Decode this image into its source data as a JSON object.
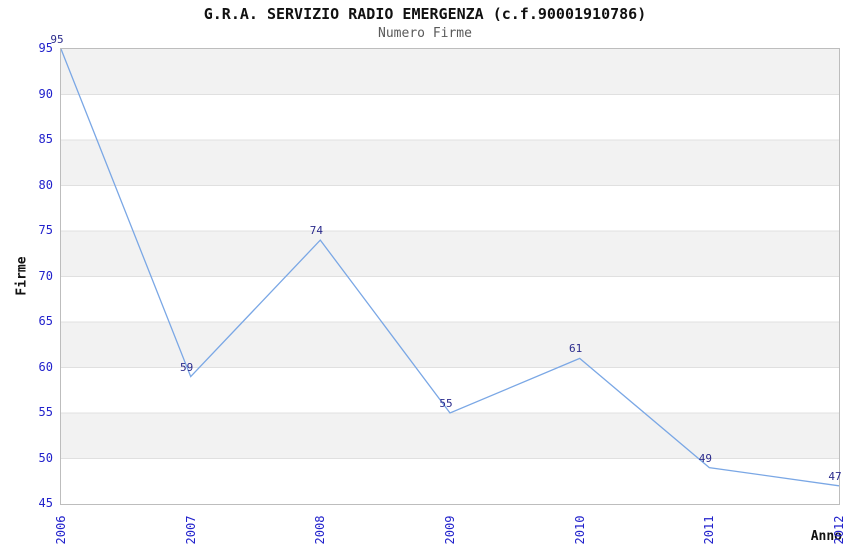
{
  "header": {
    "title": "G.R.A. SERVIZIO RADIO EMERGENZA (c.f.90001910786)",
    "subtitle": "Numero Firme"
  },
  "chart_data": {
    "type": "line",
    "title": "G.R.A. SERVIZIO RADIO EMERGENZA (c.f.90001910786)",
    "subtitle": "Numero Firme",
    "categories": [
      "2006",
      "2007",
      "2008",
      "2009",
      "2010",
      "2011",
      "2012"
    ],
    "series": [
      {
        "name": "Numero Firme",
        "values": [
          95,
          59,
          74,
          55,
          61,
          49,
          47
        ]
      }
    ],
    "data_labels": [
      95,
      59,
      74,
      55,
      61,
      49,
      47
    ],
    "xlabel": "Anno",
    "ylabel": "Firme",
    "ylim": [
      45,
      95
    ],
    "yticks": [
      45,
      50,
      55,
      60,
      65,
      70,
      75,
      80,
      85,
      90,
      95
    ],
    "grid": "horizontal-bands",
    "legend": "none",
    "colors": {
      "line": "#7aa7e5",
      "tick_label": "#2222cc",
      "data_label": "#2b2b8c",
      "band_gray": "#f2f2f2",
      "band_white": "#ffffff",
      "gridline": "#e0e0e0",
      "plot_border": "#bdbdbd",
      "title": "#111111",
      "subtitle": "#5a5a5a",
      "axis_title": "#111111",
      "background": "#ffffff"
    }
  }
}
